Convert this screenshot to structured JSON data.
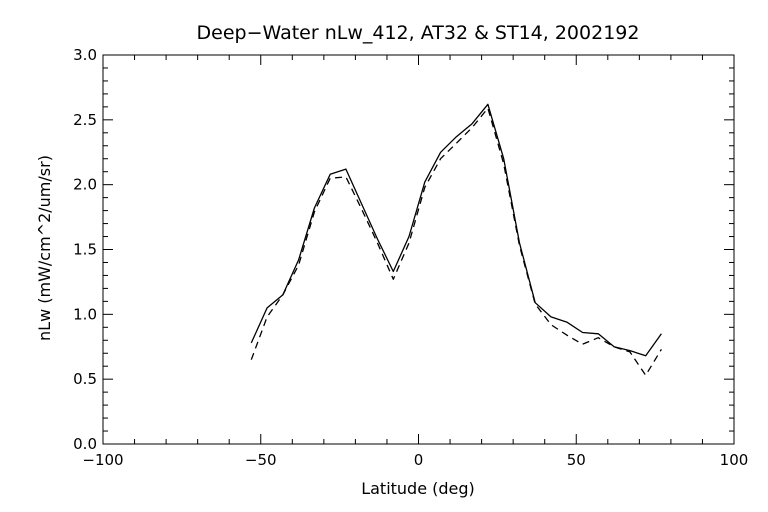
{
  "chart_data": {
    "type": "line",
    "title": "Deep−Water nLw_412, AT32 & ST14, 2002192",
    "xlabel": "Latitude (deg)",
    "ylabel": "nLw (mW/cm^2/um/sr)",
    "xlim": [
      -100,
      100
    ],
    "ylim": [
      0.0,
      3.0
    ],
    "x_ticks": [
      -100,
      -50,
      0,
      50,
      100
    ],
    "x_tick_labels": [
      "−100",
      "−50",
      "0",
      "50",
      "100"
    ],
    "y_ticks": [
      0.0,
      0.5,
      1.0,
      1.5,
      2.0,
      2.5,
      3.0
    ],
    "y_tick_labels": [
      "0.0",
      "0.5",
      "1.0",
      "1.5",
      "2.0",
      "2.5",
      "3.0"
    ],
    "grid": false,
    "series": [
      {
        "style": "solid",
        "color": "#000000",
        "x": [
          -53,
          -48,
          -43,
          -38,
          -33,
          -28,
          -23,
          -18,
          -13,
          -8,
          -3,
          2,
          7,
          12,
          17,
          22,
          27,
          32,
          37,
          42,
          47,
          52,
          57,
          62,
          67,
          72,
          77
        ],
        "y": [
          0.78,
          1.05,
          1.15,
          1.42,
          1.82,
          2.08,
          2.12,
          1.85,
          1.58,
          1.33,
          1.6,
          2.02,
          2.25,
          2.37,
          2.47,
          2.62,
          2.2,
          1.55,
          1.09,
          0.98,
          0.94,
          0.86,
          0.85,
          0.75,
          0.72,
          0.68,
          0.85
        ]
      },
      {
        "style": "dashed",
        "color": "#000000",
        "x": [
          -53,
          -48,
          -43,
          -38,
          -33,
          -28,
          -23,
          -18,
          -13,
          -8,
          -3,
          2,
          7,
          12,
          17,
          22,
          27,
          32,
          37,
          42,
          47,
          52,
          57,
          62,
          67,
          72,
          77
        ],
        "y": [
          0.65,
          0.98,
          1.15,
          1.38,
          1.79,
          2.05,
          2.06,
          1.81,
          1.55,
          1.27,
          1.55,
          1.98,
          2.2,
          2.32,
          2.44,
          2.59,
          2.16,
          1.53,
          1.08,
          0.92,
          0.84,
          0.77,
          0.82,
          0.75,
          0.71,
          0.53,
          0.73
        ]
      }
    ]
  }
}
